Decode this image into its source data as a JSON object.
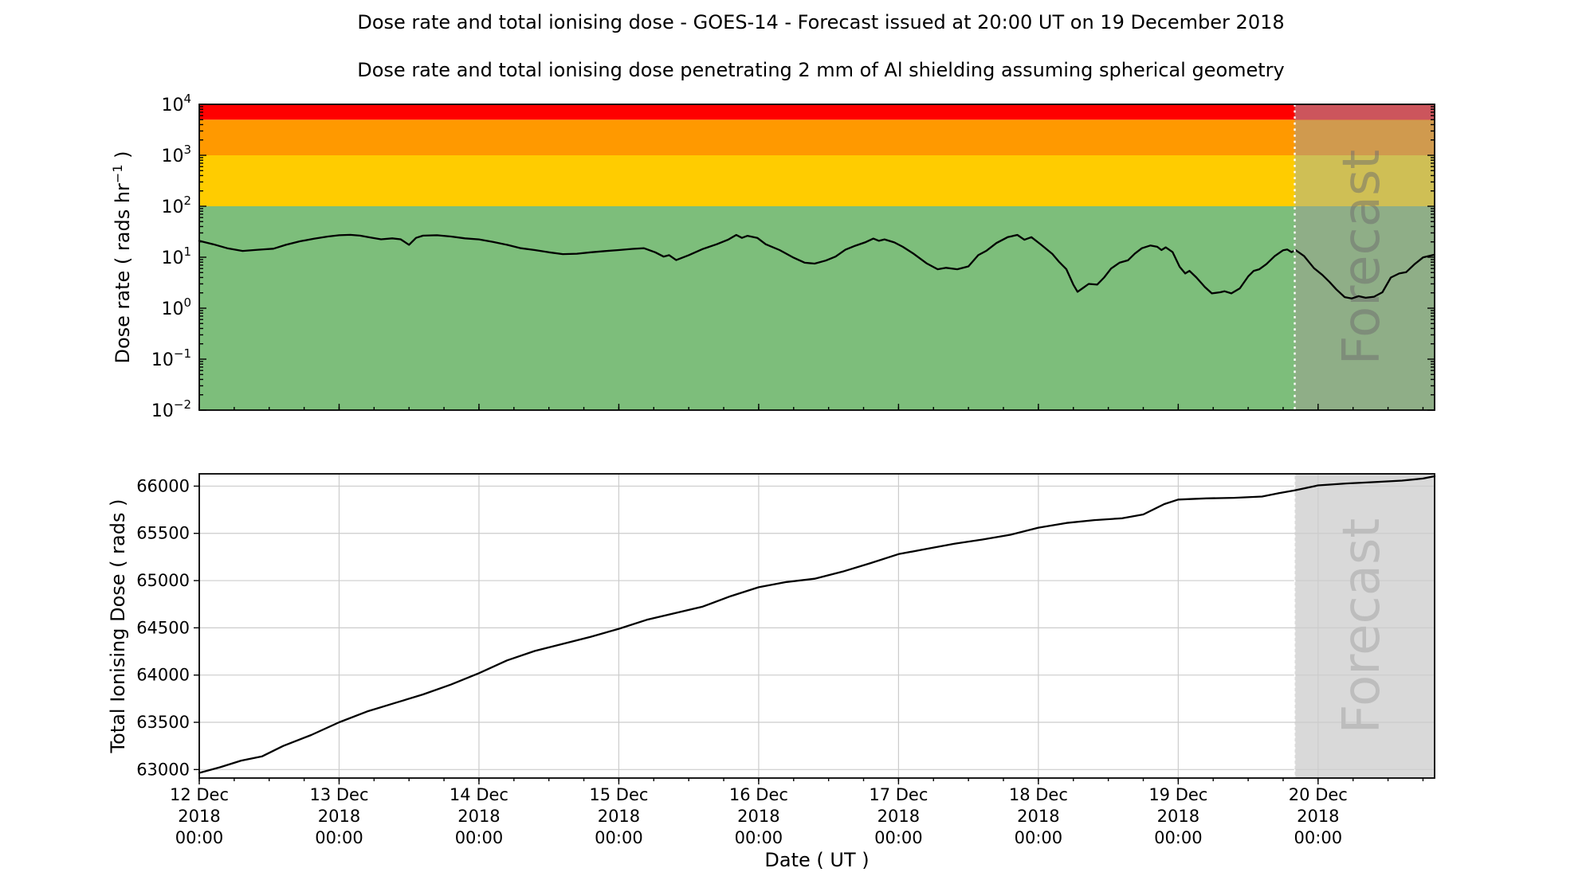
{
  "header": {
    "title": "Dose rate and total ionising dose - GOES-14 - Forecast issued at 20:00 UT on 19 December 2018",
    "subtitle": "Dose rate and total ionising dose penetrating 2 mm of Al shielding assuming spherical geometry"
  },
  "forecast": {
    "label": "Forecast",
    "start_day": 7.833,
    "top_label_color": "#6e6e6e",
    "top_label_opacity": 0.5,
    "bottom_label_color": "#bdbdbd",
    "bottom_fill": "#d9d9d9"
  },
  "x_axis": {
    "label": "Date ( UT )",
    "domain_days": [
      0,
      8.833
    ],
    "minor_tick_interval_days": 0.25,
    "tick_labels": [
      {
        "day": 0,
        "lines": [
          "12 Dec",
          "2018",
          "00:00"
        ]
      },
      {
        "day": 1,
        "lines": [
          "13 Dec",
          "2018",
          "00:00"
        ]
      },
      {
        "day": 2,
        "lines": [
          "14 Dec",
          "2018",
          "00:00"
        ]
      },
      {
        "day": 3,
        "lines": [
          "15 Dec",
          "2018",
          "00:00"
        ]
      },
      {
        "day": 4,
        "lines": [
          "16 Dec",
          "2018",
          "00:00"
        ]
      },
      {
        "day": 5,
        "lines": [
          "17 Dec",
          "2018",
          "00:00"
        ]
      },
      {
        "day": 6,
        "lines": [
          "18 Dec",
          "2018",
          "00:00"
        ]
      },
      {
        "day": 7,
        "lines": [
          "19 Dec",
          "2018",
          "00:00"
        ]
      },
      {
        "day": 8,
        "lines": [
          "20 Dec",
          "2018",
          "00:00"
        ]
      }
    ]
  },
  "chart_data": [
    {
      "id": "dose_rate",
      "type": "line",
      "yscale": "log",
      "ylim": [
        0.01,
        10000
      ],
      "ylabel_parts": {
        "main": "Dose rate ( rads hr",
        "sup": "−1",
        "end": " )"
      },
      "y_tick_exponents": [
        "4",
        "3",
        "2",
        "1",
        "0",
        "−1",
        "−2"
      ],
      "y_tick_values": [
        10000,
        1000,
        100,
        10,
        1,
        0.1,
        0.01
      ],
      "grid": false,
      "line_color": "#000000",
      "bands": [
        {
          "name": "green-band",
          "from": 0.01,
          "to": 100,
          "color": "#7dbe7b",
          "forecast_color": "#8fae87"
        },
        {
          "name": "yellow-band",
          "from": 100,
          "to": 1000,
          "color": "#ffcc00",
          "forecast_color": "#cfbf55"
        },
        {
          "name": "orange-band",
          "from": 1000,
          "to": 5000,
          "color": "#ff9900",
          "forecast_color": "#d09a4e"
        },
        {
          "name": "red-band",
          "from": 5000,
          "to": 10000,
          "color": "#ff0000",
          "forecast_color": "#cc555c"
        }
      ],
      "series": [
        {
          "name": "dose_rate_rads_per_hr",
          "points": [
            [
              0,
              21
            ],
            [
              0.1,
              18
            ],
            [
              0.2,
              15
            ],
            [
              0.31,
              13.3
            ],
            [
              0.42,
              14
            ],
            [
              0.53,
              14.7
            ],
            [
              0.62,
              17.5
            ],
            [
              0.72,
              20.5
            ],
            [
              0.82,
              23
            ],
            [
              0.92,
              25.5
            ],
            [
              1.0,
              27
            ],
            [
              1.08,
              27.5
            ],
            [
              1.15,
              26.5
            ],
            [
              1.22,
              24.5
            ],
            [
              1.3,
              22.5
            ],
            [
              1.38,
              23.5
            ],
            [
              1.44,
              22.5
            ],
            [
              1.5,
              17.5
            ],
            [
              1.55,
              24
            ],
            [
              1.6,
              26.5
            ],
            [
              1.7,
              27
            ],
            [
              1.8,
              25.5
            ],
            [
              1.9,
              23.5
            ],
            [
              2.0,
              22.4
            ],
            [
              2.1,
              20
            ],
            [
              2.2,
              17.5
            ],
            [
              2.3,
              15
            ],
            [
              2.4,
              13.8
            ],
            [
              2.5,
              12.5
            ],
            [
              2.6,
              11.5
            ],
            [
              2.7,
              11.7
            ],
            [
              2.8,
              12.5
            ],
            [
              2.9,
              13.2
            ],
            [
              3.0,
              13.8
            ],
            [
              3.1,
              14.6
            ],
            [
              3.18,
              15
            ],
            [
              3.26,
              12.5
            ],
            [
              3.32,
              10.3
            ],
            [
              3.36,
              11
            ],
            [
              3.41,
              8.8
            ],
            [
              3.5,
              11
            ],
            [
              3.6,
              14.5
            ],
            [
              3.7,
              18
            ],
            [
              3.78,
              22
            ],
            [
              3.84,
              27.4
            ],
            [
              3.88,
              24
            ],
            [
              3.92,
              26.3
            ],
            [
              3.99,
              24
            ],
            [
              4.05,
              18
            ],
            [
              4.15,
              13.8
            ],
            [
              4.25,
              9.8
            ],
            [
              4.33,
              7.8
            ],
            [
              4.4,
              7.5
            ],
            [
              4.48,
              8.6
            ],
            [
              4.55,
              10.3
            ],
            [
              4.62,
              14
            ],
            [
              4.69,
              16.8
            ],
            [
              4.76,
              19.5
            ],
            [
              4.82,
              23.2
            ],
            [
              4.86,
              21
            ],
            [
              4.9,
              22.4
            ],
            [
              4.97,
              19.5
            ],
            [
              5.03,
              16
            ],
            [
              5.11,
              11.6
            ],
            [
              5.2,
              7.6
            ],
            [
              5.28,
              5.8
            ],
            [
              5.34,
              6.2
            ],
            [
              5.42,
              5.8
            ],
            [
              5.5,
              6.6
            ],
            [
              5.57,
              11
            ],
            [
              5.63,
              13.5
            ],
            [
              5.7,
              19
            ],
            [
              5.78,
              24.8
            ],
            [
              5.85,
              27.4
            ],
            [
              5.9,
              22
            ],
            [
              5.95,
              24.8
            ],
            [
              6.02,
              17.5
            ],
            [
              6.1,
              11.6
            ],
            [
              6.15,
              8
            ],
            [
              6.2,
              5.8
            ],
            [
              6.25,
              2.9
            ],
            [
              6.28,
              2.1
            ],
            [
              6.32,
              2.5
            ],
            [
              6.36,
              3
            ],
            [
              6.42,
              2.9
            ],
            [
              6.47,
              4
            ],
            [
              6.52,
              6
            ],
            [
              6.58,
              7.8
            ],
            [
              6.64,
              8.7
            ],
            [
              6.69,
              11.8
            ],
            [
              6.74,
              15
            ],
            [
              6.8,
              17
            ],
            [
              6.85,
              16
            ],
            [
              6.88,
              13.8
            ],
            [
              6.91,
              15.6
            ],
            [
              6.96,
              12.6
            ],
            [
              7.01,
              6.5
            ],
            [
              7.05,
              4.8
            ],
            [
              7.08,
              5.4
            ],
            [
              7.13,
              4
            ],
            [
              7.19,
              2.6
            ],
            [
              7.24,
              1.95
            ],
            [
              7.3,
              2.05
            ],
            [
              7.33,
              2.15
            ],
            [
              7.38,
              1.95
            ],
            [
              7.44,
              2.45
            ],
            [
              7.5,
              4.2
            ],
            [
              7.54,
              5.4
            ],
            [
              7.58,
              5.8
            ],
            [
              7.63,
              7.3
            ],
            [
              7.69,
              10.5
            ],
            [
              7.75,
              13.7
            ],
            [
              7.78,
              14.2
            ],
            [
              7.81,
              12.6
            ],
            [
              7.84,
              13.7
            ],
            [
              7.9,
              10.5
            ],
            [
              7.97,
              6.1
            ],
            [
              8.03,
              4.5
            ],
            [
              8.08,
              3.3
            ],
            [
              8.13,
              2.35
            ],
            [
              8.19,
              1.65
            ],
            [
              8.24,
              1.55
            ],
            [
              8.29,
              1.72
            ],
            [
              8.34,
              1.6
            ],
            [
              8.4,
              1.68
            ],
            [
              8.46,
              2.05
            ],
            [
              8.52,
              4
            ],
            [
              8.58,
              4.8
            ],
            [
              8.63,
              5.1
            ],
            [
              8.69,
              7.3
            ],
            [
              8.75,
              9.9
            ],
            [
              8.83,
              11.2
            ]
          ]
        }
      ]
    },
    {
      "id": "total_ionising_dose",
      "type": "line",
      "yscale": "linear",
      "ylim": [
        62910,
        66130
      ],
      "ylabel": "Total Ionising Dose ( rads )",
      "y_ticks": [
        63000,
        63500,
        64000,
        64500,
        65000,
        65500,
        66000
      ],
      "grid": true,
      "grid_color": "#cccccc",
      "line_color": "#000000",
      "series": [
        {
          "name": "total_ionising_dose_rads",
          "points": [
            [
              0,
              62965
            ],
            [
              0.15,
              63025
            ],
            [
              0.3,
              63095
            ],
            [
              0.45,
              63140
            ],
            [
              0.6,
              63250
            ],
            [
              0.8,
              63365
            ],
            [
              1.0,
              63500
            ],
            [
              1.2,
              63615
            ],
            [
              1.4,
              63705
            ],
            [
              1.6,
              63795
            ],
            [
              1.8,
              63900
            ],
            [
              2.0,
              64020
            ],
            [
              2.2,
              64155
            ],
            [
              2.4,
              64255
            ],
            [
              2.6,
              64330
            ],
            [
              2.8,
              64405
            ],
            [
              3.0,
              64490
            ],
            [
              3.2,
              64585
            ],
            [
              3.4,
              64655
            ],
            [
              3.6,
              64725
            ],
            [
              3.8,
              64835
            ],
            [
              4.0,
              64930
            ],
            [
              4.2,
              64985
            ],
            [
              4.4,
              65020
            ],
            [
              4.6,
              65095
            ],
            [
              4.8,
              65185
            ],
            [
              5.0,
              65280
            ],
            [
              5.2,
              65335
            ],
            [
              5.4,
              65390
            ],
            [
              5.6,
              65435
            ],
            [
              5.8,
              65485
            ],
            [
              6.0,
              65560
            ],
            [
              6.2,
              65610
            ],
            [
              6.4,
              65640
            ],
            [
              6.6,
              65660
            ],
            [
              6.75,
              65700
            ],
            [
              6.9,
              65810
            ],
            [
              7.0,
              65858
            ],
            [
              7.2,
              65870
            ],
            [
              7.4,
              65876
            ],
            [
              7.6,
              65890
            ],
            [
              7.72,
              65925
            ],
            [
              7.833,
              65955
            ],
            [
              8.0,
              66008
            ],
            [
              8.2,
              66028
            ],
            [
              8.4,
              66042
            ],
            [
              8.6,
              66058
            ],
            [
              8.75,
              66080
            ],
            [
              8.833,
              66105
            ]
          ]
        }
      ]
    }
  ]
}
